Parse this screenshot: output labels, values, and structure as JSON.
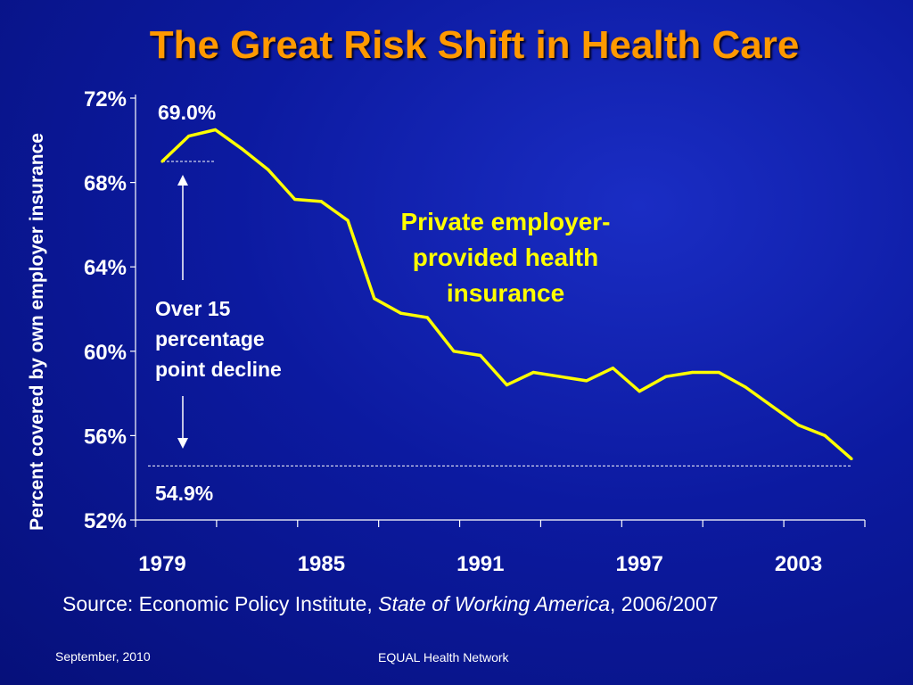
{
  "title": "The Great Risk Shift in Health Care",
  "source": {
    "prefix": "Source: Economic Policy Institute, ",
    "publication": "State of Working America",
    "suffix": ", 2006/2007"
  },
  "footer": {
    "date": "September, 2010",
    "org": "EQUAL Health Network"
  },
  "colors": {
    "title": "#ff9900",
    "line": "#ffff00",
    "series_label": "#ffff00",
    "text": "#ffffff",
    "background": "#0c1aa0"
  },
  "chart_data": {
    "type": "line",
    "title": "",
    "ylabel": "Percent covered by own employer insurance",
    "xlabel": "",
    "ylim": [
      52,
      72
    ],
    "xlim": [
      1979,
      2005
    ],
    "yticks": [
      "72%",
      "68%",
      "64%",
      "60%",
      "56%",
      "52%"
    ],
    "ytick_values": [
      72,
      68,
      64,
      60,
      56,
      52
    ],
    "xticks": [
      "1979",
      "1985",
      "1991",
      "1997",
      "2003"
    ],
    "xtick_values": [
      1979,
      1985,
      1991,
      1997,
      2003
    ],
    "grid": false,
    "series": [
      {
        "name": "Private employer-provided health insurance",
        "x": [
          1979,
          1980,
          1981,
          1982,
          1983,
          1984,
          1985,
          1986,
          1987,
          1988,
          1989,
          1990,
          1991,
          1992,
          1993,
          1994,
          1995,
          1996,
          1997,
          1998,
          1999,
          2000,
          2001,
          2002,
          2003,
          2004,
          2005
        ],
        "values": [
          69.0,
          70.2,
          70.5,
          69.6,
          68.6,
          67.2,
          67.1,
          66.2,
          62.5,
          61.8,
          61.6,
          60.0,
          59.8,
          58.4,
          59.0,
          58.8,
          58.6,
          59.2,
          58.1,
          58.8,
          59.0,
          59.0,
          58.3,
          57.4,
          56.5,
          56.0,
          54.9
        ]
      }
    ],
    "annotations": {
      "start_value": "69.0%",
      "end_value": "54.9%",
      "decline_note": [
        "Over 15",
        "percentage",
        "point decline"
      ],
      "series_label": [
        "Private employer-",
        "provided health",
        "insurance"
      ]
    }
  }
}
